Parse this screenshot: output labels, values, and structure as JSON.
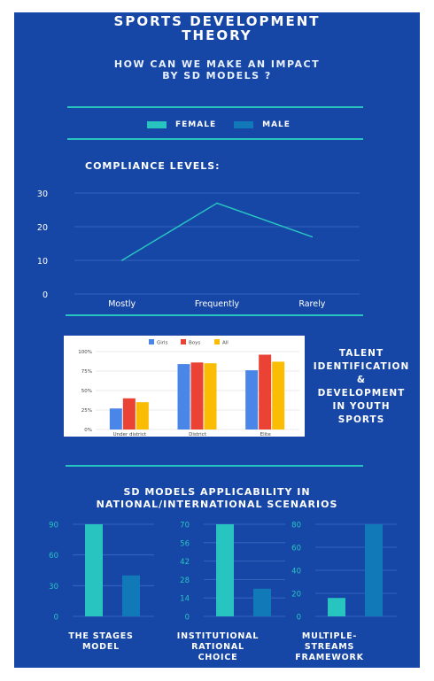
{
  "header": {
    "title_line1": "SPORTS DEVELOPMENT",
    "title_line2": "THEORY",
    "subtitle_line1": "HOW CAN WE MAKE AN IMPACT",
    "subtitle_line2": "BY SD MODELS ?"
  },
  "legend": {
    "items": [
      {
        "label": "FEMALE",
        "color": "#27c4c0"
      },
      {
        "label": "MALE",
        "color": "#1279b8"
      }
    ]
  },
  "colors": {
    "background": "#1747a6",
    "accent_teal": "#27c4c0",
    "accent_blue": "#1279b8",
    "bar_girls": "#4a86e8",
    "bar_boys": "#ea4335",
    "bar_all": "#fbbc04"
  },
  "compliance": {
    "title": "COMPLIANCE LEVELS:"
  },
  "talent": {
    "lines": [
      "TALENT",
      "IDENTIFICATION",
      "&",
      "DEVELOPMENT",
      "IN YOUTH",
      "SPORTS"
    ]
  },
  "sd_models": {
    "title_line1": "SD MODELS APPLICABILITY IN",
    "title_line2": "NATIONAL/INTERNATIONAL SCENARIOS",
    "captions": [
      [
        "THE STAGES",
        "MODEL"
      ],
      [
        "INSTITUTIONAL",
        "RATIONAL",
        "CHOICE"
      ],
      [
        "MULTIPLE-",
        "STREAMS",
        "FRAMEWORK"
      ]
    ]
  },
  "chart_data": [
    {
      "type": "line",
      "title": "COMPLIANCE LEVELS:",
      "categories": [
        "Mostly",
        "Frequently",
        "Rarely"
      ],
      "series": [
        {
          "values": [
            10,
            27,
            17
          ]
        }
      ],
      "ylim": [
        0,
        30
      ],
      "yticks": [
        0,
        10,
        20,
        30
      ],
      "grid": true
    },
    {
      "type": "bar",
      "categories": [
        "Under district",
        "District",
        "Elite"
      ],
      "series": [
        {
          "name": "Girls",
          "values": [
            27,
            84,
            76
          ]
        },
        {
          "name": "Boys",
          "values": [
            40,
            86,
            96
          ]
        },
        {
          "name": "All",
          "values": [
            35,
            85,
            87
          ]
        }
      ],
      "ylim": [
        0,
        100
      ],
      "yticks": [
        "0%",
        "25%",
        "50%",
        "75%",
        "100%"
      ],
      "legend": "top"
    },
    {
      "type": "bar",
      "series": [
        {
          "name": "FEMALE",
          "values": [
            90
          ]
        },
        {
          "name": "MALE",
          "values": [
            40
          ]
        }
      ],
      "ylim": [
        0,
        90
      ],
      "yticks": [
        0,
        30,
        60,
        90
      ]
    },
    {
      "type": "bar",
      "series": [
        {
          "name": "FEMALE",
          "values": [
            70
          ]
        },
        {
          "name": "MALE",
          "values": [
            21
          ]
        }
      ],
      "ylim": [
        0,
        70
      ],
      "yticks": [
        0,
        14,
        28,
        42,
        56,
        70
      ]
    },
    {
      "type": "bar",
      "series": [
        {
          "name": "FEMALE",
          "values": [
            16
          ]
        },
        {
          "name": "MALE",
          "values": [
            80
          ]
        }
      ],
      "ylim": [
        0,
        80
      ],
      "yticks": [
        0,
        20,
        40,
        60,
        80
      ]
    }
  ]
}
